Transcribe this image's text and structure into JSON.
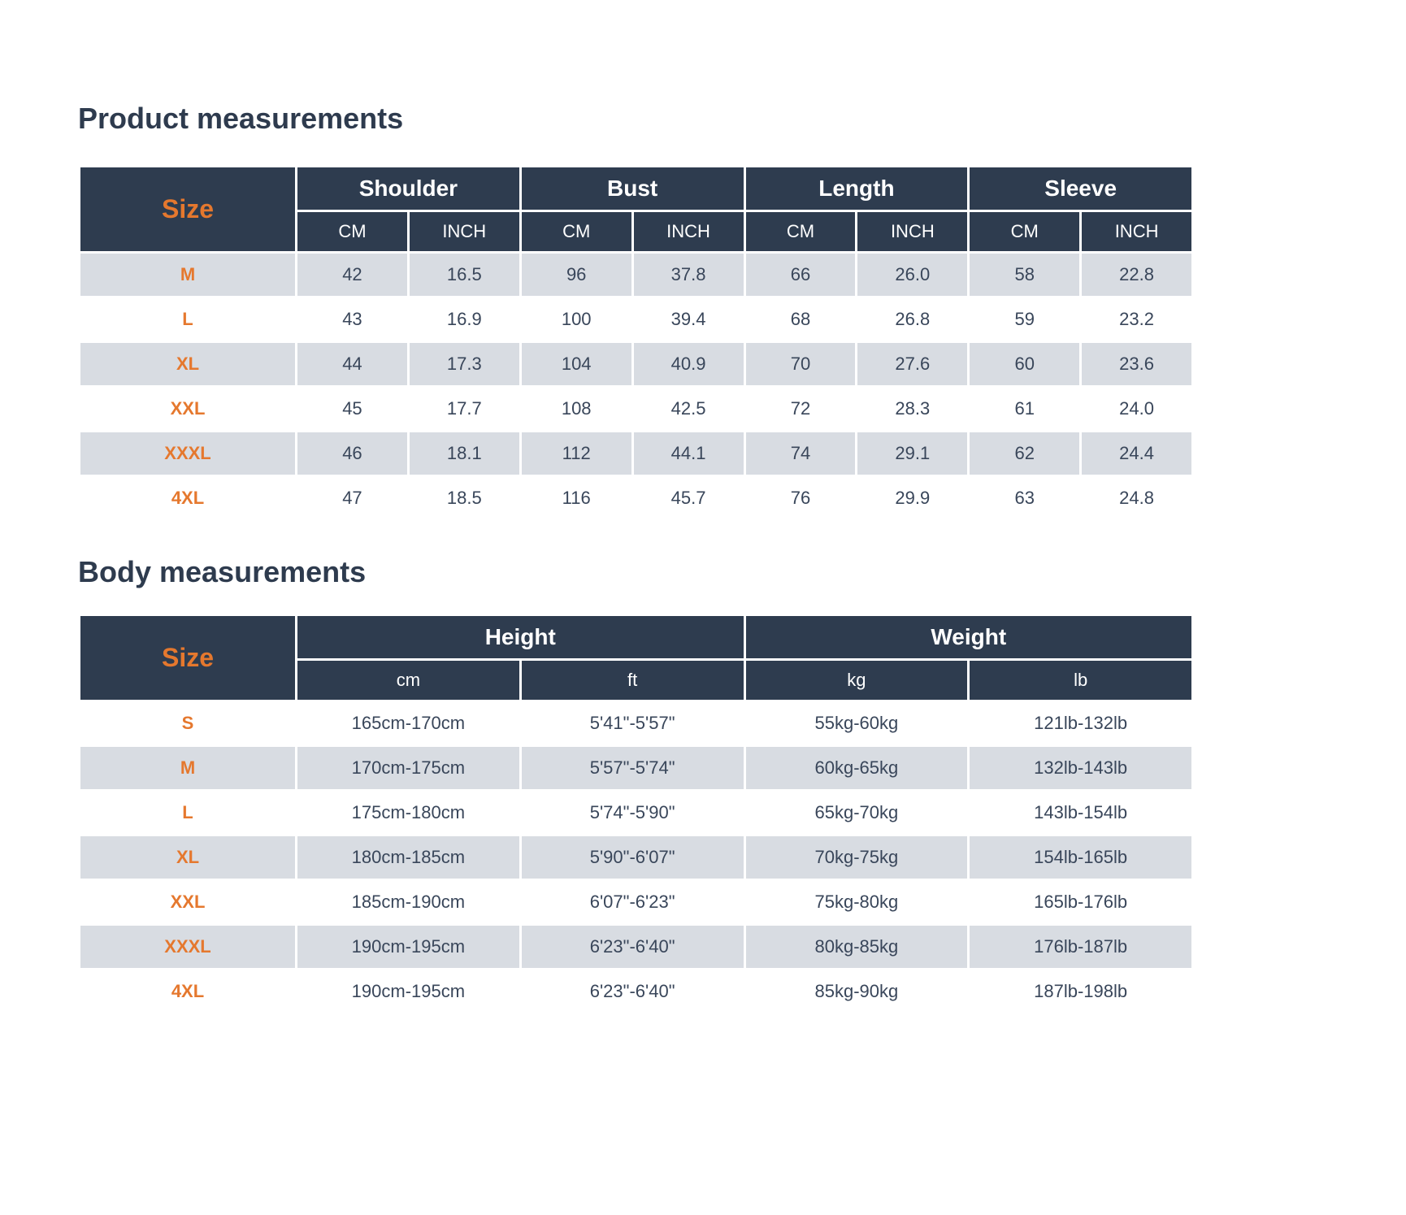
{
  "colors": {
    "header_bg": "#2e3c4f",
    "header_text": "#ffffff",
    "accent_orange": "#e5782e",
    "shaded_row_bg": "#d8dce2",
    "row_bg": "#ffffff",
    "title_text": "#2e3b4e",
    "cell_text": "#39465a"
  },
  "product_table": {
    "title": "Product measurements",
    "size_header": "Size",
    "groups": [
      {
        "label": "Shoulder",
        "sub": [
          "CM",
          "INCH"
        ]
      },
      {
        "label": "Bust",
        "sub": [
          "CM",
          "INCH"
        ]
      },
      {
        "label": "Length",
        "sub": [
          "CM",
          "INCH"
        ]
      },
      {
        "label": "Sleeve",
        "sub": [
          "CM",
          "INCH"
        ]
      }
    ],
    "rows": [
      {
        "size": "M",
        "values": [
          "42",
          "16.5",
          "96",
          "37.8",
          "66",
          "26.0",
          "58",
          "22.8"
        ]
      },
      {
        "size": "L",
        "values": [
          "43",
          "16.9",
          "100",
          "39.4",
          "68",
          "26.8",
          "59",
          "23.2"
        ]
      },
      {
        "size": "XL",
        "values": [
          "44",
          "17.3",
          "104",
          "40.9",
          "70",
          "27.6",
          "60",
          "23.6"
        ]
      },
      {
        "size": "XXL",
        "values": [
          "45",
          "17.7",
          "108",
          "42.5",
          "72",
          "28.3",
          "61",
          "24.0"
        ]
      },
      {
        "size": "XXXL",
        "values": [
          "46",
          "18.1",
          "112",
          "44.1",
          "74",
          "29.1",
          "62",
          "24.4"
        ]
      },
      {
        "size": "4XL",
        "values": [
          "47",
          "18.5",
          "116",
          "45.7",
          "76",
          "29.9",
          "63",
          "24.8"
        ]
      }
    ]
  },
  "body_table": {
    "title": "Body measurements",
    "size_header": "Size",
    "groups": [
      {
        "label": "Height",
        "sub": [
          "cm",
          "ft"
        ]
      },
      {
        "label": "Weight",
        "sub": [
          "kg",
          "lb"
        ]
      }
    ],
    "rows": [
      {
        "size": "S",
        "values": [
          "165cm-170cm",
          "5'41\"-5'57\"",
          "55kg-60kg",
          "121lb-132lb"
        ]
      },
      {
        "size": "M",
        "values": [
          "170cm-175cm",
          "5'57\"-5'74\"",
          "60kg-65kg",
          "132lb-143lb"
        ]
      },
      {
        "size": "L",
        "values": [
          "175cm-180cm",
          "5'74\"-5'90\"",
          "65kg-70kg",
          "143lb-154lb"
        ]
      },
      {
        "size": "XL",
        "values": [
          "180cm-185cm",
          "5'90\"-6'07\"",
          "70kg-75kg",
          "154lb-165lb"
        ]
      },
      {
        "size": "XXL",
        "values": [
          "185cm-190cm",
          "6'07\"-6'23\"",
          "75kg-80kg",
          "165lb-176lb"
        ]
      },
      {
        "size": "XXXL",
        "values": [
          "190cm-195cm",
          "6'23\"-6'40\"",
          "80kg-85kg",
          "176lb-187lb"
        ]
      },
      {
        "size": "4XL",
        "values": [
          "190cm-195cm",
          "6'23\"-6'40\"",
          "85kg-90kg",
          "187lb-198lb"
        ]
      }
    ]
  }
}
